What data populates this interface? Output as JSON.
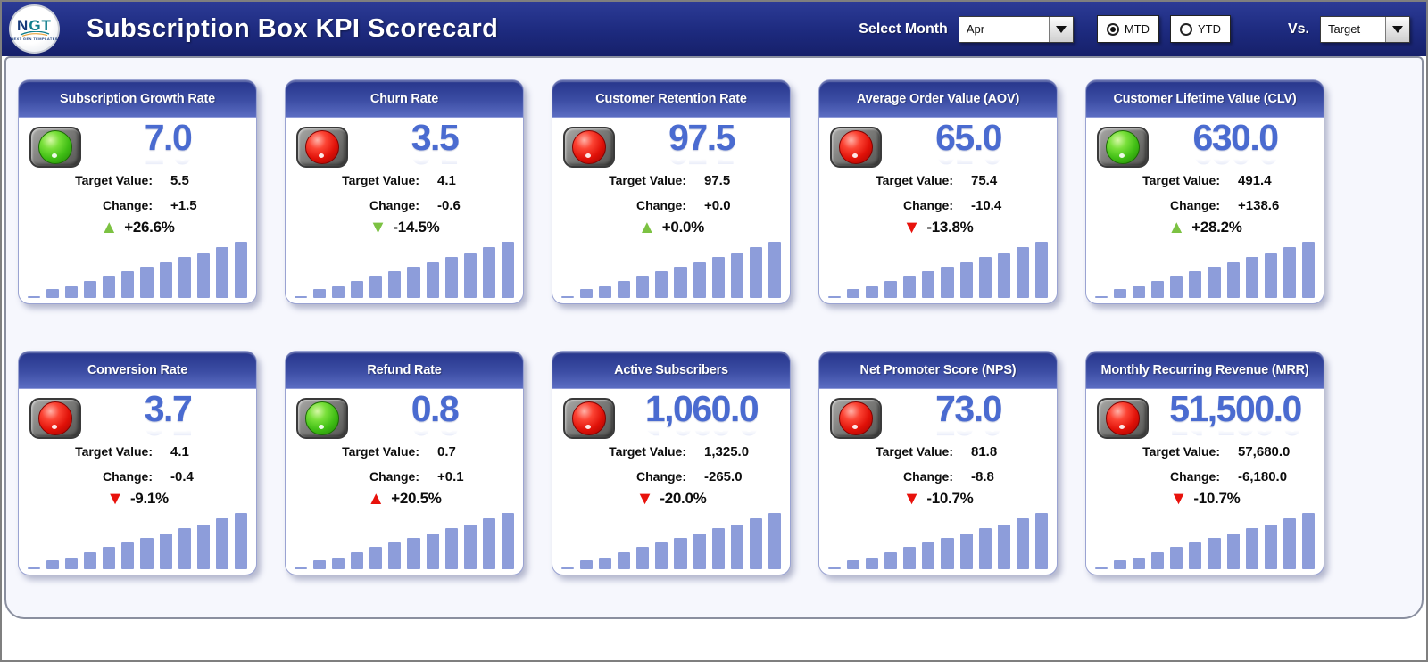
{
  "header": {
    "logo_text": "NGT",
    "logo_subtext": "NEXT GEN TEMPLATES",
    "title": "Subscription Box KPI Scorecard",
    "select_month_label": "Select Month",
    "month_value": "Apr",
    "period_options": [
      {
        "label": "MTD",
        "selected": true
      },
      {
        "label": "YTD",
        "selected": false
      }
    ],
    "vs_label": "Vs.",
    "vs_value": "Target"
  },
  "labels": {
    "target": "Target Value:",
    "change": "Change:"
  },
  "colors": {
    "nav_navy": "#1d2a7e",
    "card_header_blue": "#3c4da4",
    "kpi_value_blue": "#4a6bd0",
    "bar_blue": "#8d9dda",
    "arrow_green": "#7cc242",
    "arrow_red": "#e8120c",
    "light_green": "#3fbd14",
    "light_red": "#e01108"
  },
  "sparkline_note": "12 ascending bars per card, relative heights 0-100",
  "cards": [
    {
      "title": "Subscription Growth Rate",
      "status_light": "green",
      "value": "7.0",
      "target_value": "5.5",
      "change_value": "+1.5",
      "pct_change": "+26.6%",
      "trend_arrow": "up",
      "arrow_color": "green",
      "sparkline": [
        3,
        16,
        21,
        30,
        39,
        48,
        55,
        64,
        73,
        80,
        91,
        100
      ]
    },
    {
      "title": "Churn Rate",
      "status_light": "red",
      "value": "3.5",
      "target_value": "4.1",
      "change_value": "-0.6",
      "pct_change": "-14.5%",
      "trend_arrow": "down",
      "arrow_color": "green",
      "sparkline": [
        3,
        16,
        21,
        30,
        39,
        48,
        55,
        64,
        73,
        80,
        91,
        100
      ]
    },
    {
      "title": "Customer Retention Rate",
      "status_light": "red",
      "value": "97.5",
      "target_value": "97.5",
      "change_value": "+0.0",
      "pct_change": "+0.0%",
      "trend_arrow": "up",
      "arrow_color": "green",
      "sparkline": [
        3,
        16,
        21,
        30,
        39,
        48,
        55,
        64,
        73,
        80,
        91,
        100
      ]
    },
    {
      "title": "Average Order Value (AOV)",
      "status_light": "red",
      "value": "65.0",
      "target_value": "75.4",
      "change_value": "-10.4",
      "pct_change": "-13.8%",
      "trend_arrow": "down",
      "arrow_color": "red",
      "sparkline": [
        3,
        16,
        21,
        30,
        39,
        48,
        55,
        64,
        73,
        80,
        91,
        100
      ]
    },
    {
      "title": "Customer Lifetime Value (CLV)",
      "status_light": "green",
      "value": "630.0",
      "target_value": "491.4",
      "change_value": "+138.6",
      "pct_change": "+28.2%",
      "trend_arrow": "up",
      "arrow_color": "green",
      "sparkline": [
        3,
        16,
        21,
        30,
        39,
        48,
        55,
        64,
        73,
        80,
        91,
        100
      ]
    },
    {
      "title": "Conversion Rate",
      "status_light": "red",
      "value": "3.7",
      "target_value": "4.1",
      "change_value": "-0.4",
      "pct_change": "-9.1%",
      "trend_arrow": "down",
      "arrow_color": "red",
      "sparkline": [
        3,
        16,
        21,
        30,
        39,
        48,
        55,
        64,
        73,
        80,
        91,
        100
      ]
    },
    {
      "title": "Refund Rate",
      "status_light": "green",
      "value": "0.8",
      "target_value": "0.7",
      "change_value": "+0.1",
      "pct_change": "+20.5%",
      "trend_arrow": "up",
      "arrow_color": "red",
      "sparkline": [
        3,
        16,
        21,
        30,
        39,
        48,
        55,
        64,
        73,
        80,
        91,
        100
      ]
    },
    {
      "title": "Active Subscribers",
      "status_light": "red",
      "value": "1,060.0",
      "target_value": "1,325.0",
      "change_value": "-265.0",
      "pct_change": "-20.0%",
      "trend_arrow": "down",
      "arrow_color": "red",
      "sparkline": [
        3,
        16,
        21,
        30,
        39,
        48,
        55,
        64,
        73,
        80,
        91,
        100
      ]
    },
    {
      "title": "Net Promoter Score (NPS)",
      "status_light": "red",
      "value": "73.0",
      "target_value": "81.8",
      "change_value": "-8.8",
      "pct_change": "-10.7%",
      "trend_arrow": "down",
      "arrow_color": "red",
      "sparkline": [
        3,
        16,
        21,
        30,
        39,
        48,
        55,
        64,
        73,
        80,
        91,
        100
      ]
    },
    {
      "title": "Monthly Recurring Revenue (MRR)",
      "status_light": "red",
      "value": "51,500.0",
      "target_value": "57,680.0",
      "change_value": "-6,180.0",
      "pct_change": "-10.7%",
      "trend_arrow": "down",
      "arrow_color": "red",
      "sparkline": [
        3,
        16,
        21,
        30,
        39,
        48,
        55,
        64,
        73,
        80,
        91,
        100
      ]
    }
  ]
}
